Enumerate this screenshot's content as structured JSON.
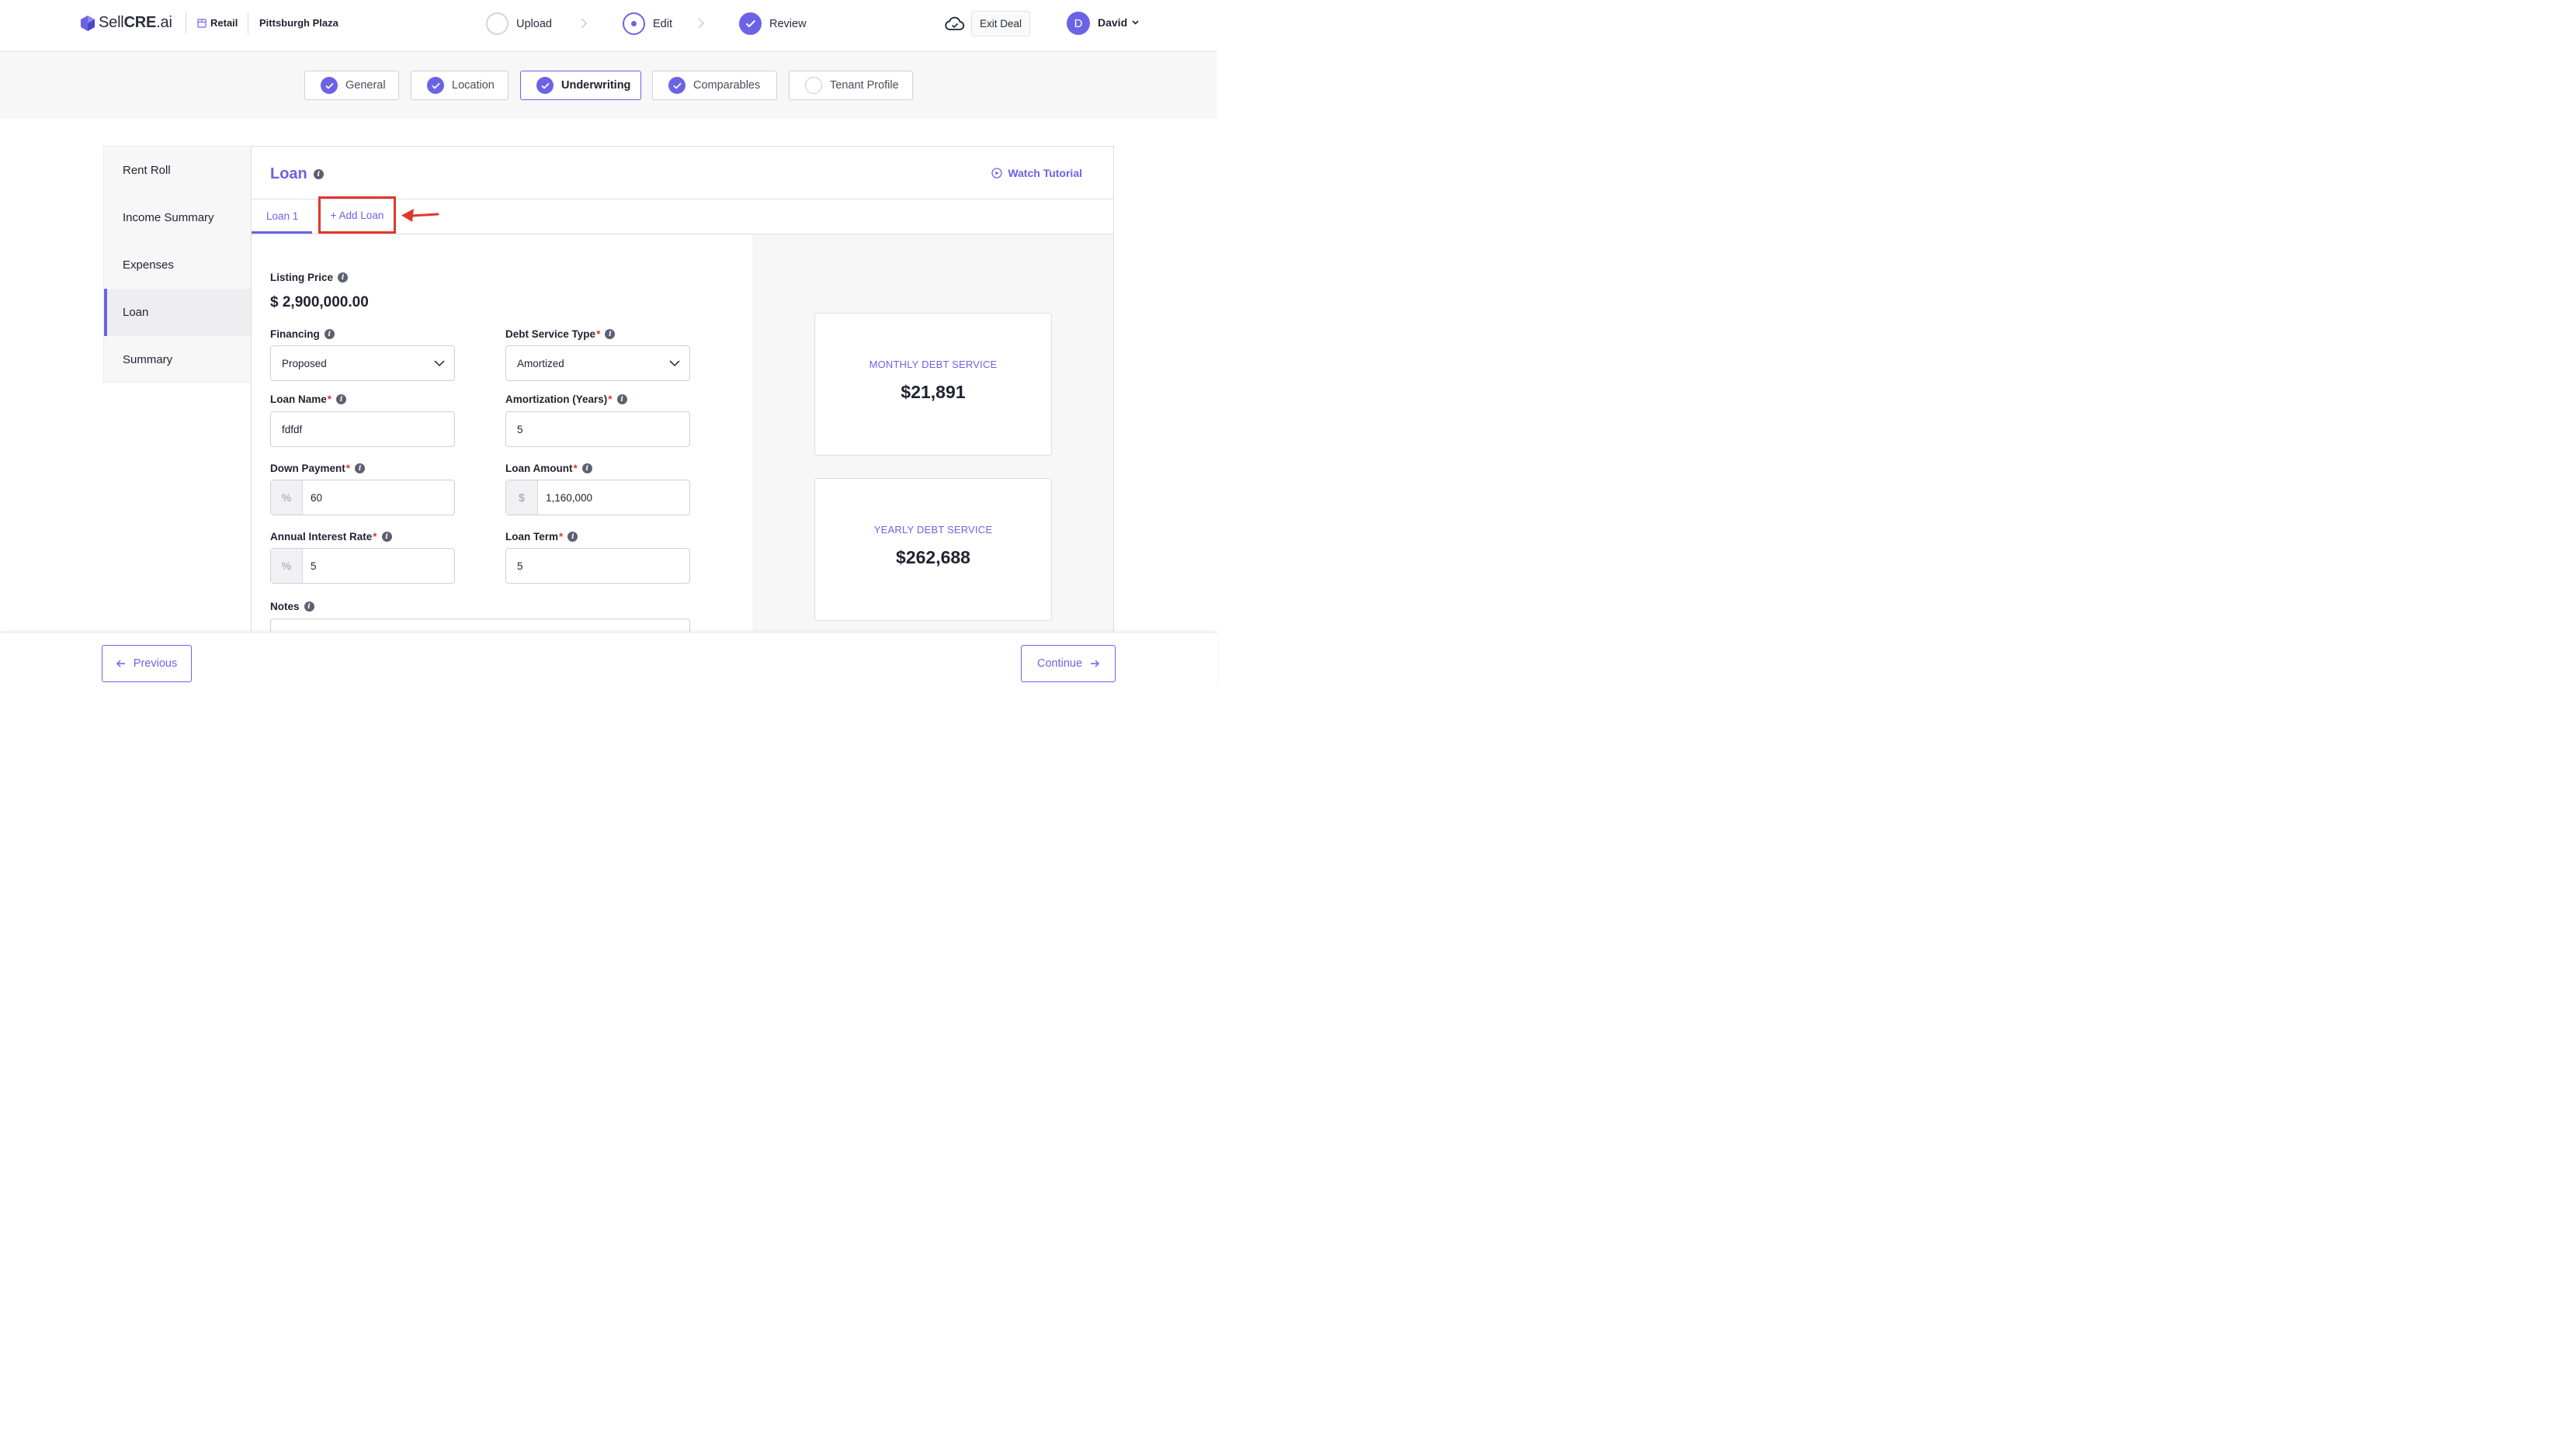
{
  "header": {
    "logo": {
      "prefix": "Sell",
      "bold": "CRE",
      "suffix": ".ai"
    },
    "property_type": "Retail",
    "deal_name": "Pittsburgh Plaza",
    "steps": [
      {
        "label": "Upload",
        "state": "pending"
      },
      {
        "label": "Edit",
        "state": "active"
      },
      {
        "label": "Review",
        "state": "done"
      }
    ],
    "exit_label": "Exit Deal",
    "user": {
      "initial": "D",
      "name": "David"
    }
  },
  "section_tabs": [
    {
      "label": "General",
      "done": true
    },
    {
      "label": "Location",
      "done": true
    },
    {
      "label": "Underwriting",
      "done": true,
      "active": true
    },
    {
      "label": "Comparables",
      "done": true
    },
    {
      "label": "Tenant Profile",
      "done": false
    }
  ],
  "sidebar": {
    "items": [
      {
        "label": "Rent Roll"
      },
      {
        "label": "Income Summary"
      },
      {
        "label": "Expenses"
      },
      {
        "label": "Loan",
        "active": true
      },
      {
        "label": "Summary"
      }
    ]
  },
  "panel": {
    "title": "Loan",
    "watch_tutorial": "Watch Tutorial",
    "loan_tabs": [
      "Loan 1"
    ],
    "add_loan": "+ Add Loan"
  },
  "form": {
    "listing_price_label": "Listing Price",
    "listing_price": "$ 2,900,000.00",
    "financing": {
      "label": "Financing",
      "value": "Proposed"
    },
    "debt_service_type": {
      "label": "Debt Service Type",
      "value": "Amortized"
    },
    "loan_name": {
      "label": "Loan Name",
      "value": "fdfdf"
    },
    "amortization": {
      "label": "Amortization (Years)",
      "value": "5"
    },
    "down_payment": {
      "label": "Down Payment",
      "prefix": "%",
      "value": "60"
    },
    "loan_amount": {
      "label": "Loan Amount",
      "prefix": "$",
      "value": "1,160,000"
    },
    "interest_rate": {
      "label": "Annual Interest Rate",
      "prefix": "%",
      "value": "5"
    },
    "loan_term": {
      "label": "Loan Term",
      "value": "5"
    },
    "notes_label": "Notes"
  },
  "summary_cards": {
    "monthly": {
      "label": "MONTHLY DEBT SERVICE",
      "value": "$21,891"
    },
    "yearly": {
      "label": "YEARLY DEBT SERVICE",
      "value": "$262,688"
    }
  },
  "footer": {
    "previous": "Previous",
    "continue": "Continue"
  },
  "colors": {
    "accent": "#6b63e6",
    "highlight": "#e1372b"
  }
}
